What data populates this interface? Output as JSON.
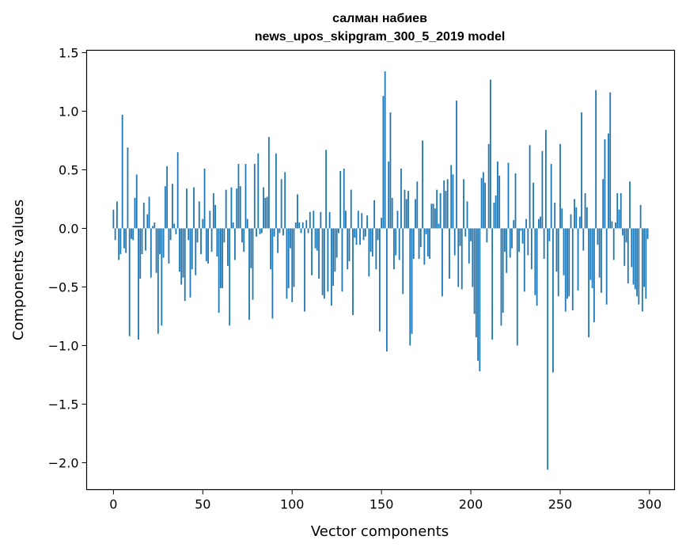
{
  "chart_data": {
    "type": "bar",
    "title": "салман набиев",
    "subtitle": "news_upos_skipgram_300_5_2019 model",
    "xlabel": "Vector components",
    "ylabel": "Components values",
    "xlim": [
      -15,
      314
    ],
    "ylim": [
      -2.23,
      1.52
    ],
    "xticks": [
      0,
      50,
      100,
      150,
      200,
      250,
      300
    ],
    "xtick_labels": [
      "0",
      "50",
      "100",
      "150",
      "200",
      "250",
      "300"
    ],
    "yticks": [
      1.5,
      1.0,
      0.5,
      0.0,
      -0.5,
      -1.0,
      -1.5,
      -2.0
    ],
    "ytick_labels": [
      "1.5",
      "1.0",
      "0.5",
      "0.0",
      "−0.5",
      "−1.0",
      "−1.5",
      "−2.0"
    ],
    "grid": false,
    "bar_color": "#1f77b4",
    "x": [
      0,
      1,
      2,
      3,
      4,
      5,
      6,
      7,
      8,
      9,
      10,
      11,
      12,
      13,
      14,
      15,
      16,
      17,
      18,
      19,
      20,
      21,
      22,
      23,
      24,
      25,
      26,
      27,
      28,
      29,
      30,
      31,
      32,
      33,
      34,
      35,
      36,
      37,
      38,
      39,
      40,
      41,
      42,
      43,
      44,
      45,
      46,
      47,
      48,
      49,
      50,
      51,
      52,
      53,
      54,
      55,
      56,
      57,
      58,
      59,
      60,
      61,
      62,
      63,
      64,
      65,
      66,
      67,
      68,
      69,
      70,
      71,
      72,
      73,
      74,
      75,
      76,
      77,
      78,
      79,
      80,
      81,
      82,
      83,
      84,
      85,
      86,
      87,
      88,
      89,
      90,
      91,
      92,
      93,
      94,
      95,
      96,
      97,
      98,
      99,
      100,
      101,
      102,
      103,
      104,
      105,
      106,
      107,
      108,
      109,
      110,
      111,
      112,
      113,
      114,
      115,
      116,
      117,
      118,
      119,
      120,
      121,
      122,
      123,
      124,
      125,
      126,
      127,
      128,
      129,
      130,
      131,
      132,
      133,
      134,
      135,
      136,
      137,
      138,
      139,
      140,
      141,
      142,
      143,
      144,
      145,
      146,
      147,
      148,
      149,
      150,
      151,
      152,
      153,
      154,
      155,
      156,
      157,
      158,
      159,
      160,
      161,
      162,
      163,
      164,
      165,
      166,
      167,
      168,
      169,
      170,
      171,
      172,
      173,
      174,
      175,
      176,
      177,
      178,
      179,
      180,
      181,
      182,
      183,
      184,
      185,
      186,
      187,
      188,
      189,
      190,
      191,
      192,
      193,
      194,
      195,
      196,
      197,
      198,
      199,
      200,
      201,
      202,
      203,
      204,
      205,
      206,
      207,
      208,
      209,
      210,
      211,
      212,
      213,
      214,
      215,
      216,
      217,
      218,
      219,
      220,
      221,
      222,
      223,
      224,
      225,
      226,
      227,
      228,
      229,
      230,
      231,
      232,
      233,
      234,
      235,
      236,
      237,
      238,
      239,
      240,
      241,
      242,
      243,
      244,
      245,
      246,
      247,
      248,
      249,
      250,
      251,
      252,
      253,
      254,
      255,
      256,
      257,
      258,
      259,
      260,
      261,
      262,
      263,
      264,
      265,
      266,
      267,
      268,
      269,
      270,
      271,
      272,
      273,
      274,
      275,
      276,
      277,
      278,
      279,
      280,
      281,
      282,
      283,
      284,
      285,
      286,
      287,
      288,
      289,
      290,
      291,
      292,
      293,
      294,
      295,
      296,
      297,
      298,
      299
    ],
    "values": [
      0.16,
      -0.1,
      0.23,
      -0.27,
      -0.22,
      0.97,
      -0.17,
      -0.21,
      0.69,
      -0.92,
      -0.09,
      -0.1,
      0.26,
      0.46,
      -0.95,
      -0.43,
      -0.22,
      0.22,
      -0.19,
      0.12,
      0.27,
      -0.42,
      0.02,
      0.05,
      -0.38,
      -0.9,
      -0.22,
      -0.83,
      -0.25,
      0.36,
      0.53,
      -0.3,
      -0.1,
      0.38,
      0.04,
      -0.05,
      0.65,
      -0.37,
      -0.48,
      -0.42,
      -0.62,
      0.34,
      -0.1,
      -0.59,
      -0.35,
      0.35,
      -0.4,
      -0.12,
      0.23,
      -0.22,
      0.08,
      0.51,
      -0.28,
      -0.3,
      0.15,
      -0.2,
      0.3,
      0.2,
      -0.24,
      -0.72,
      -0.51,
      -0.51,
      -0.12,
      0.33,
      -0.32,
      -0.83,
      0.35,
      0.05,
      -0.27,
      0.34,
      0.55,
      0.36,
      -0.12,
      -0.2,
      0.55,
      0.08,
      -0.78,
      -0.34,
      -0.61,
      0.55,
      -0.07,
      0.64,
      -0.05,
      -0.04,
      0.35,
      0.26,
      0.27,
      0.78,
      -0.35,
      -0.77,
      -0.07,
      0.64,
      -0.21,
      -0.04,
      0.42,
      -0.06,
      0.48,
      -0.6,
      -0.51,
      -0.17,
      -0.63,
      -0.5,
      0.05,
      0.29,
      0.05,
      -0.04,
      0.05,
      -0.71,
      0.07,
      -0.04,
      0.14,
      -0.4,
      0.15,
      -0.17,
      -0.19,
      -0.43,
      0.14,
      -0.57,
      -0.6,
      0.67,
      -0.54,
      0.14,
      -0.66,
      -0.49,
      -0.37,
      -0.25,
      -0.04,
      0.49,
      -0.54,
      0.51,
      0.15,
      -0.35,
      -0.28,
      0.33,
      -0.74,
      -0.08,
      -0.14,
      0.15,
      -0.14,
      0.13,
      -0.1,
      -0.07,
      0.11,
      -0.41,
      -0.2,
      -0.24,
      0.24,
      -0.35,
      -0.1,
      -0.88,
      0.09,
      1.13,
      1.34,
      -1.05,
      0.57,
      0.99,
      0.26,
      -0.35,
      -0.23,
      0.15,
      -0.27,
      0.51,
      -0.56,
      0.33,
      0.25,
      0.32,
      -1.0,
      -0.9,
      -0.26,
      0.25,
      0.4,
      -0.26,
      -0.16,
      0.75,
      -0.31,
      -0.05,
      -0.24,
      -0.26,
      0.21,
      0.21,
      0.17,
      0.33,
      0.04,
      0.3,
      -0.58,
      0.41,
      0.32,
      0.42,
      -0.43,
      0.54,
      0.46,
      -0.23,
      1.09,
      -0.5,
      -0.15,
      -0.52,
      0.42,
      -0.07,
      0.23,
      -0.3,
      -0.11,
      -0.5,
      -0.73,
      -0.93,
      -1.13,
      -1.22,
      0.43,
      0.48,
      0.39,
      -0.12,
      0.72,
      1.27,
      -0.95,
      0.22,
      0.28,
      0.57,
      0.45,
      -0.83,
      -0.72,
      -0.2,
      -0.38,
      0.56,
      -0.25,
      -0.17,
      0.07,
      0.47,
      -1.0,
      -0.2,
      -0.02,
      -0.13,
      -0.54,
      0.08,
      -0.23,
      0.71,
      -0.35,
      0.39,
      -0.57,
      -0.66,
      0.08,
      0.1,
      0.66,
      -0.26,
      0.84,
      -2.06,
      -0.11,
      0.55,
      -1.23,
      0.22,
      -0.37,
      -0.58,
      0.72,
      0.17,
      -0.4,
      -0.71,
      -0.6,
      -0.58,
      0.12,
      -0.7,
      0.25,
      0.18,
      -0.53,
      0.1,
      0.99,
      -0.19,
      0.3,
      0.18,
      -0.93,
      -0.44,
      -0.51,
      -0.8,
      1.18,
      -0.14,
      -0.42,
      -0.55,
      0.42,
      0.76,
      -0.65,
      0.81,
      1.16,
      0.06,
      -0.27,
      0.05,
      0.3,
      0.16,
      0.3,
      -0.06,
      -0.32,
      -0.12,
      -0.47,
      0.4,
      -0.33,
      -0.48,
      -0.52,
      -0.58,
      -0.65,
      0.2,
      -0.71,
      -0.5,
      -0.6,
      -0.09
    ]
  }
}
